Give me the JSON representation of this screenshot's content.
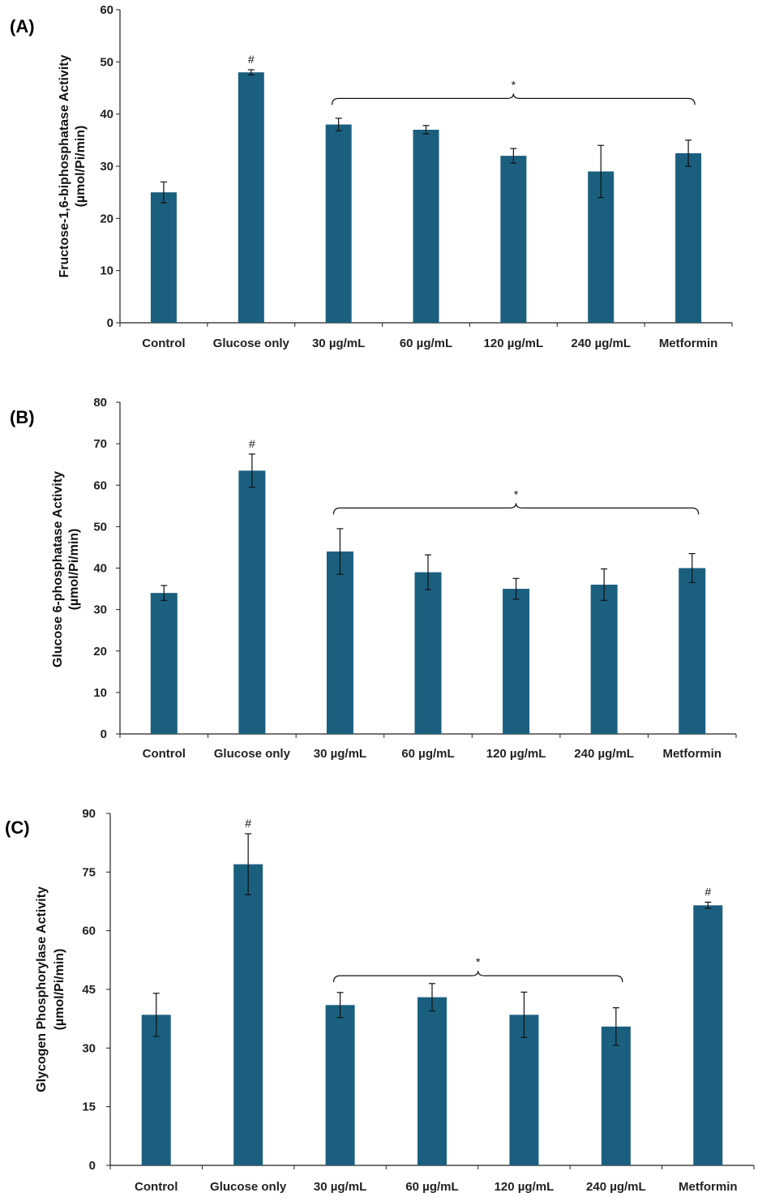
{
  "colors": {
    "bar": "#1b5f7f",
    "axis": "#222222",
    "error": "#111111"
  },
  "chart_data": [
    {
      "type": "bar",
      "panel_label": "(A)",
      "title": "",
      "ylabel_line1": "Fructose-1,6-biphosphatase Activity",
      "ylabel_line2": "(µmol/Pi/min)",
      "xlabel": "",
      "categories": [
        "Control",
        "Glucose only",
        "30 µg/mL",
        "60 µg/mL",
        "120  µg/mL",
        "240 µg/mL",
        "Metformin"
      ],
      "values": [
        25,
        48,
        38,
        37,
        32,
        29,
        32.5
      ],
      "errors": [
        2,
        0.5,
        1.2,
        0.8,
        1.4,
        5,
        2.5
      ],
      "marks": [
        "",
        "#",
        "",
        "",
        "",
        "",
        ""
      ],
      "ylim": [
        0,
        60
      ],
      "yticks": [
        0,
        10,
        20,
        30,
        40,
        50,
        60
      ],
      "bracket": {
        "from": 2,
        "to": 6,
        "label": "*",
        "y": 43
      }
    },
    {
      "type": "bar",
      "panel_label": "(B)",
      "title": "",
      "ylabel_line1": "Glucose 6-phosphatase Activity",
      "ylabel_line2": "(µmol/Pi/min)",
      "xlabel": "",
      "categories": [
        "Control",
        "Glucose only",
        "30 µg/mL",
        "60 µg/mL",
        "120  µg/mL",
        "240 µg/mL",
        "Metformin"
      ],
      "values": [
        34,
        63.5,
        44,
        39,
        35,
        36,
        40
      ],
      "errors": [
        1.8,
        4,
        5.5,
        4.2,
        2.5,
        3.8,
        3.5
      ],
      "marks": [
        "",
        "#",
        "",
        "",
        "",
        "",
        ""
      ],
      "ylim": [
        0,
        80
      ],
      "yticks": [
        0,
        10,
        20,
        30,
        40,
        50,
        60,
        70,
        80
      ],
      "bracket": {
        "from": 2,
        "to": 6,
        "label": "*",
        "y": 54.5
      }
    },
    {
      "type": "bar",
      "panel_label": "(C)",
      "title": "",
      "ylabel_line1": "Glycogen Phosphorylase Activity",
      "ylabel_line2": "(µmol/Pi/min)",
      "xlabel": "",
      "categories": [
        "Control",
        "Glucose only",
        "30 µg/mL",
        "60 µg/mL",
        "120  µg/mL",
        "240 µg/mL",
        "Metformin"
      ],
      "values": [
        38.5,
        77,
        41,
        43,
        38.5,
        35.5,
        66.5
      ],
      "errors": [
        5.5,
        7.8,
        3.2,
        3.5,
        5.8,
        4.8,
        0.8
      ],
      "marks": [
        "",
        "#",
        "",
        "",
        "",
        "",
        "#"
      ],
      "ylim": [
        0,
        90
      ],
      "yticks": [
        0,
        15,
        30,
        45,
        60,
        75,
        90
      ],
      "bracket": {
        "from": 2,
        "to": 5,
        "label": "*",
        "y": 48.5
      }
    }
  ]
}
